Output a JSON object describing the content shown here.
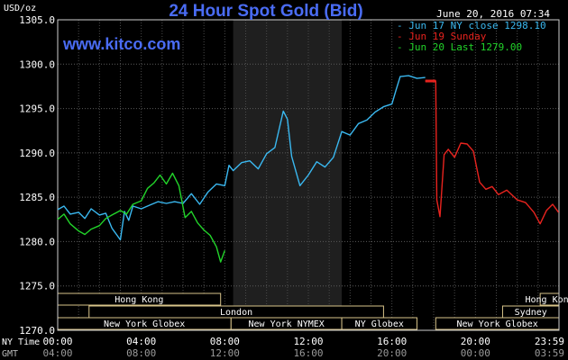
{
  "chart_data": {
    "type": "line",
    "title": "24 Hour Spot Gold (Bid)",
    "source": "www.kitco.com",
    "timestamp": "June 20, 2016 07:34",
    "unit_label": "USD/oz",
    "ylim": [
      1270,
      1305
    ],
    "xlim_hours": [
      0,
      24
    ],
    "y_ticks": [
      "1305.0",
      "1300.0",
      "1295.0",
      "1290.0",
      "1285.0",
      "1280.0",
      "1275.0",
      "1270.0"
    ],
    "y_tick_values": [
      1305,
      1300,
      1295,
      1290,
      1285,
      1280,
      1275,
      1270
    ],
    "x_tick_hours": [
      0,
      4,
      8,
      12,
      16,
      20,
      23.983
    ],
    "x_row_ny_label": "NY Time",
    "x_row_gmt_label": "GMT",
    "x_ticks_ny": [
      "00:00",
      "04:00",
      "08:00",
      "12:00",
      "16:00",
      "20:00",
      "23:59"
    ],
    "x_ticks_gmt": [
      "04:00",
      "08:00",
      "12:00",
      "16:00",
      "20:00",
      "00:00",
      "03:59"
    ],
    "grid": true,
    "legend_position": "top-right",
    "highlight_hours": [
      8.4,
      13.6
    ],
    "series": [
      {
        "name": "Jun 17 NY close 1298.10",
        "color": "#3ab8f0",
        "x": [
          0,
          0.3,
          0.6,
          1,
          1.3,
          1.6,
          2,
          2.3,
          2.6,
          3,
          3.2,
          3.4,
          3.6,
          4,
          4.4,
          4.8,
          5.2,
          5.6,
          6,
          6.4,
          6.8,
          7.2,
          7.6,
          8,
          8.2,
          8.4,
          8.8,
          9.2,
          9.6,
          10,
          10.4,
          10.8,
          11,
          11.2,
          11.6,
          12,
          12.4,
          12.8,
          13.2,
          13.6,
          14,
          14.4,
          14.8,
          15.2,
          15.6,
          16,
          16.2,
          16.4,
          16.8,
          17.2,
          17.6
        ],
        "y": [
          1283.6,
          1284.0,
          1283.1,
          1283.3,
          1282.6,
          1283.7,
          1283.0,
          1283.2,
          1281.5,
          1280.2,
          1283.4,
          1282.4,
          1284.0,
          1283.7,
          1284.1,
          1284.5,
          1284.3,
          1284.5,
          1284.3,
          1285.4,
          1284.2,
          1285.6,
          1286.5,
          1286.3,
          1288.6,
          1288.0,
          1288.9,
          1289.1,
          1288.2,
          1289.9,
          1290.6,
          1294.7,
          1293.8,
          1289.6,
          1286.3,
          1287.5,
          1289.0,
          1288.4,
          1289.5,
          1292.4,
          1292.0,
          1293.3,
          1293.7,
          1294.6,
          1295.2,
          1295.5,
          1297.1,
          1298.6,
          1298.7,
          1298.4,
          1298.5
        ]
      },
      {
        "name": "Jun 19 Sunday",
        "color": "#e8231e",
        "x": [
          17.6,
          18.1,
          18.15,
          18.3,
          18.5,
          18.7,
          19,
          19.3,
          19.6,
          19.9,
          20.2,
          20.5,
          20.8,
          21.1,
          21.5,
          22,
          22.4,
          22.8,
          23.1,
          23.4,
          23.7,
          23.98
        ],
        "y": [
          1298.1,
          1298.1,
          1284.7,
          1282.8,
          1289.8,
          1290.4,
          1289.5,
          1291.1,
          1291.0,
          1290.2,
          1286.7,
          1285.9,
          1286.2,
          1285.3,
          1285.8,
          1284.7,
          1284.4,
          1283.3,
          1282.0,
          1283.5,
          1284.2,
          1283.3
        ]
      },
      {
        "name": "Jun 20 Last 1279.00",
        "color": "#22d42a",
        "x": [
          0,
          0.3,
          0.6,
          1,
          1.3,
          1.6,
          2,
          2.3,
          2.6,
          3,
          3.3,
          3.6,
          4,
          4.3,
          4.6,
          4.9,
          5.2,
          5.5,
          5.8,
          6.1,
          6.4,
          6.7,
          7,
          7.3,
          7.6,
          7.8,
          8
        ],
        "y": [
          1282.5,
          1283.1,
          1282.0,
          1281.2,
          1280.8,
          1281.4,
          1281.8,
          1282.6,
          1283.0,
          1283.5,
          1283.1,
          1284.2,
          1284.6,
          1286.0,
          1286.6,
          1287.5,
          1286.5,
          1287.7,
          1286.3,
          1282.7,
          1283.4,
          1282.1,
          1281.3,
          1280.7,
          1279.4,
          1277.7,
          1279.0
        ]
      }
    ],
    "sessions": [
      {
        "name": "Hong Kong",
        "row": 0,
        "start": 0,
        "end": 7.8
      },
      {
        "name": "Hong Kong",
        "row": 0,
        "start": 23.1,
        "end": 24
      },
      {
        "name": "London",
        "row": 1,
        "start": 1.5,
        "end": 15.6
      },
      {
        "name": "Sydney",
        "row": 1,
        "start": 21.3,
        "end": 24
      },
      {
        "name": "New York Globex",
        "row": 2,
        "start": 0,
        "end": 8.3
      },
      {
        "name": "New York NYMEX",
        "row": 2,
        "start": 8.3,
        "end": 13.6
      },
      {
        "name": "NY Globex",
        "row": 2,
        "start": 13.6,
        "end": 17.2
      },
      {
        "name": "New York Globex",
        "row": 2,
        "start": 18.1,
        "end": 24
      }
    ]
  }
}
